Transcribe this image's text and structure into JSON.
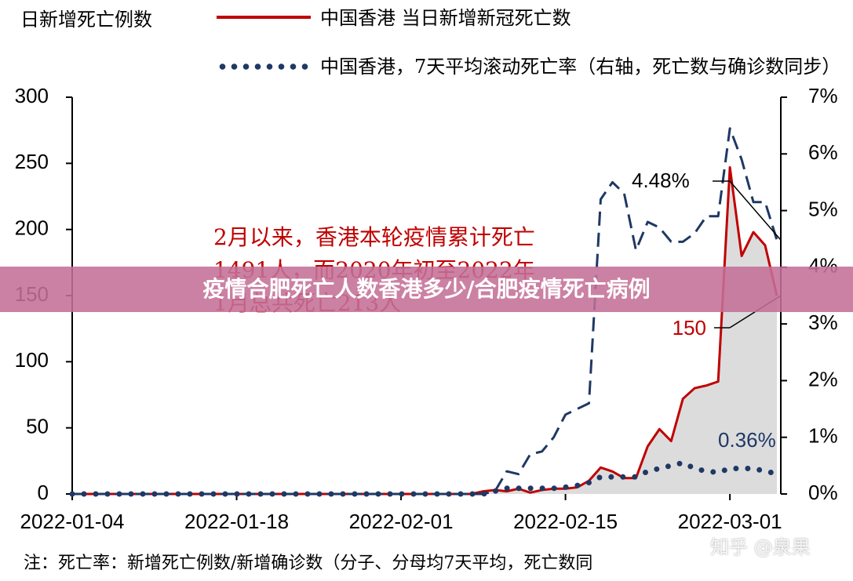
{
  "chart_data": {
    "type": "line",
    "y_label": "日新增死亡例数",
    "x": [
      "2022-01-04",
      "2022-01-05",
      "2022-01-06",
      "2022-01-07",
      "2022-01-08",
      "2022-01-09",
      "2022-01-10",
      "2022-01-11",
      "2022-01-12",
      "2022-01-13",
      "2022-01-14",
      "2022-01-15",
      "2022-01-16",
      "2022-01-17",
      "2022-01-18",
      "2022-01-19",
      "2022-01-20",
      "2022-01-21",
      "2022-01-22",
      "2022-01-23",
      "2022-01-24",
      "2022-01-25",
      "2022-01-26",
      "2022-01-27",
      "2022-01-28",
      "2022-01-29",
      "2022-01-30",
      "2022-01-31",
      "2022-02-01",
      "2022-02-02",
      "2022-02-03",
      "2022-02-04",
      "2022-02-05",
      "2022-02-06",
      "2022-02-07",
      "2022-02-08",
      "2022-02-09",
      "2022-02-10",
      "2022-02-11",
      "2022-02-12",
      "2022-02-13",
      "2022-02-14",
      "2022-02-15",
      "2022-02-16",
      "2022-02-17",
      "2022-02-18",
      "2022-02-19",
      "2022-02-20",
      "2022-02-21",
      "2022-02-22",
      "2022-02-23",
      "2022-02-24",
      "2022-02-25",
      "2022-02-26",
      "2022-02-27",
      "2022-02-28",
      "2022-03-01",
      "2022-03-02",
      "2022-03-03",
      "2022-03-04",
      "2022-03-05"
    ],
    "series": [
      {
        "name": "中国香港 当日新增新冠死亡数",
        "color": "#c00000",
        "style": "solid",
        "fill": "#dcdcdc",
        "values": [
          0,
          0,
          0,
          0,
          0,
          0,
          0,
          0,
          0,
          0,
          0,
          0,
          0,
          0,
          0,
          0,
          0,
          0,
          0,
          0,
          0,
          0,
          0,
          0,
          0,
          0,
          0,
          0,
          0,
          0,
          0,
          0,
          0,
          0,
          0,
          2,
          3,
          2,
          4,
          1,
          3,
          4,
          4,
          5,
          10,
          20,
          17,
          12,
          12,
          36,
          49,
          40,
          72,
          80,
          82,
          85,
          247,
          180,
          198,
          188,
          150
        ]
      },
      {
        "color": "#1f3864",
        "style": "dashed",
        "axis": "y2",
        "values": [
          0,
          0,
          0,
          0,
          0,
          0,
          0,
          0,
          0,
          0,
          0,
          0,
          0,
          0,
          0,
          0,
          0,
          0,
          0,
          0,
          0,
          0,
          0,
          0,
          0,
          0,
          0,
          0,
          0,
          0,
          0,
          0,
          0,
          0,
          0,
          0,
          0.05,
          0.4,
          0.35,
          0.7,
          0.75,
          1.0,
          1.4,
          1.5,
          1.6,
          5.2,
          5.5,
          5.3,
          4.3,
          4.8,
          4.7,
          4.45,
          4.45,
          4.6,
          4.9,
          4.9,
          6.45,
          5.9,
          5.15,
          5.15,
          4.48
        ]
      },
      {
        "name": "中国香港，7天平均滚动死亡率（右轴，死亡数与确诊数同步）",
        "color": "#1f3864",
        "style": "dotted",
        "axis": "y2",
        "values": [
          0,
          0,
          0,
          0,
          0,
          0,
          0,
          0,
          0,
          0,
          0,
          0,
          0,
          0,
          0,
          0,
          0,
          0,
          0,
          0,
          0,
          0,
          0,
          0,
          0,
          0,
          0,
          0,
          0,
          0,
          0,
          0,
          0,
          0,
          0,
          0,
          0.05,
          0.1,
          0.1,
          0.1,
          0.1,
          0.1,
          0.12,
          0.15,
          0.2,
          0.3,
          0.3,
          0.3,
          0.3,
          0.4,
          0.45,
          0.5,
          0.55,
          0.45,
          0.4,
          0.38,
          0.45,
          0.45,
          0.45,
          0.4,
          0.36
        ]
      }
    ],
    "ylim": [
      0,
      300
    ],
    "yticks": [
      0,
      50,
      100,
      150,
      200,
      250,
      300
    ],
    "y2lim": [
      0,
      7
    ],
    "y2ticks": [
      {
        "value": 0,
        "label": "0%"
      },
      {
        "value": 1,
        "label": "1%"
      },
      {
        "value": 2,
        "label": "2%"
      },
      {
        "value": 3,
        "label": "3%"
      },
      {
        "value": 4,
        "label": "4%"
      },
      {
        "value": 5,
        "label": "5%"
      },
      {
        "value": 6,
        "label": "6%"
      },
      {
        "value": 7,
        "label": "7%"
      }
    ],
    "xticks": [
      "2022-01-04",
      "2022-01-18",
      "2022-02-01",
      "2022-02-15",
      "2022-03-01"
    ],
    "annotations": [
      "4.48%",
      "150",
      "0.36%"
    ],
    "annotation_text": "2月以来，香港本轮疫情累计死亡1491人，而2020年初至2022年1月总共死亡213人",
    "note": "注：死亡率：新增死亡例数/新增确诊数（分子、分母均7天平均，死亡数同"
  },
  "watermark": "知乎 @泉果",
  "overlay_title": "疫情合肥死亡人数香港多少/合肥疫情死亡病例"
}
